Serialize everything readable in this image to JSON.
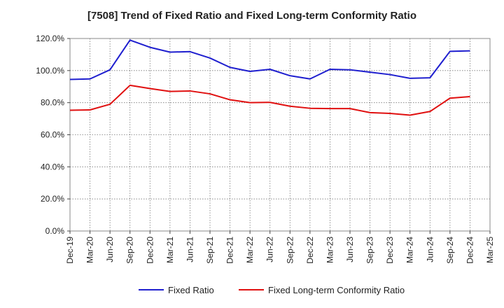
{
  "chart_data": {
    "type": "line",
    "title": "[7508]  Trend of Fixed Ratio and Fixed Long-term Conformity Ratio",
    "xlabel": "",
    "ylabel": "",
    "ylim": [
      0,
      120
    ],
    "y_ticks": [
      "0.0%",
      "20.0%",
      "40.0%",
      "60.0%",
      "80.0%",
      "100.0%",
      "120.0%"
    ],
    "y_tick_values": [
      0,
      20,
      40,
      60,
      80,
      100,
      120
    ],
    "x_ticks": [
      "Dec-19",
      "Mar-20",
      "Jun-20",
      "Sep-20",
      "Dec-20",
      "Mar-21",
      "Jun-21",
      "Sep-21",
      "Dec-21",
      "Mar-22",
      "Jun-22",
      "Sep-22",
      "Dec-22",
      "Mar-23",
      "Jun-23",
      "Sep-23",
      "Dec-23",
      "Mar-24",
      "Jun-24",
      "Sep-24",
      "Dec-24",
      "Mar-25"
    ],
    "grid": true,
    "legend_position": "bottom",
    "series": [
      {
        "name": "Fixed Ratio",
        "color": "#1f1fcf",
        "x": [
          "Dec-19",
          "Mar-20",
          "Jun-20",
          "Sep-20",
          "Dec-20",
          "Mar-21",
          "Jun-21",
          "Sep-21",
          "Dec-21",
          "Mar-22",
          "Jun-22",
          "Sep-22",
          "Dec-22",
          "Mar-23",
          "Jun-23",
          "Sep-23",
          "Dec-23",
          "Mar-24",
          "Jun-24",
          "Sep-24",
          "Dec-24"
        ],
        "values": [
          94.5,
          94.8,
          100.5,
          119.0,
          114.5,
          111.5,
          111.8,
          107.8,
          102.0,
          99.5,
          100.8,
          96.8,
          94.8,
          100.8,
          100.5,
          99.0,
          97.5,
          95.2,
          95.5,
          112.0,
          112.3
        ]
      },
      {
        "name": "Fixed Long-term Conformity Ratio",
        "color": "#e01010",
        "x": [
          "Dec-19",
          "Mar-20",
          "Jun-20",
          "Sep-20",
          "Dec-20",
          "Mar-21",
          "Jun-21",
          "Sep-21",
          "Dec-21",
          "Mar-22",
          "Jun-22",
          "Sep-22",
          "Dec-22",
          "Mar-23",
          "Jun-23",
          "Sep-23",
          "Dec-23",
          "Mar-24",
          "Jun-24",
          "Sep-24",
          "Dec-24"
        ],
        "values": [
          75.3,
          75.5,
          79.0,
          90.8,
          88.8,
          87.0,
          87.3,
          85.5,
          81.8,
          80.0,
          80.2,
          77.8,
          76.5,
          76.3,
          76.3,
          73.8,
          73.3,
          72.2,
          74.5,
          82.8,
          83.8
        ]
      }
    ]
  }
}
